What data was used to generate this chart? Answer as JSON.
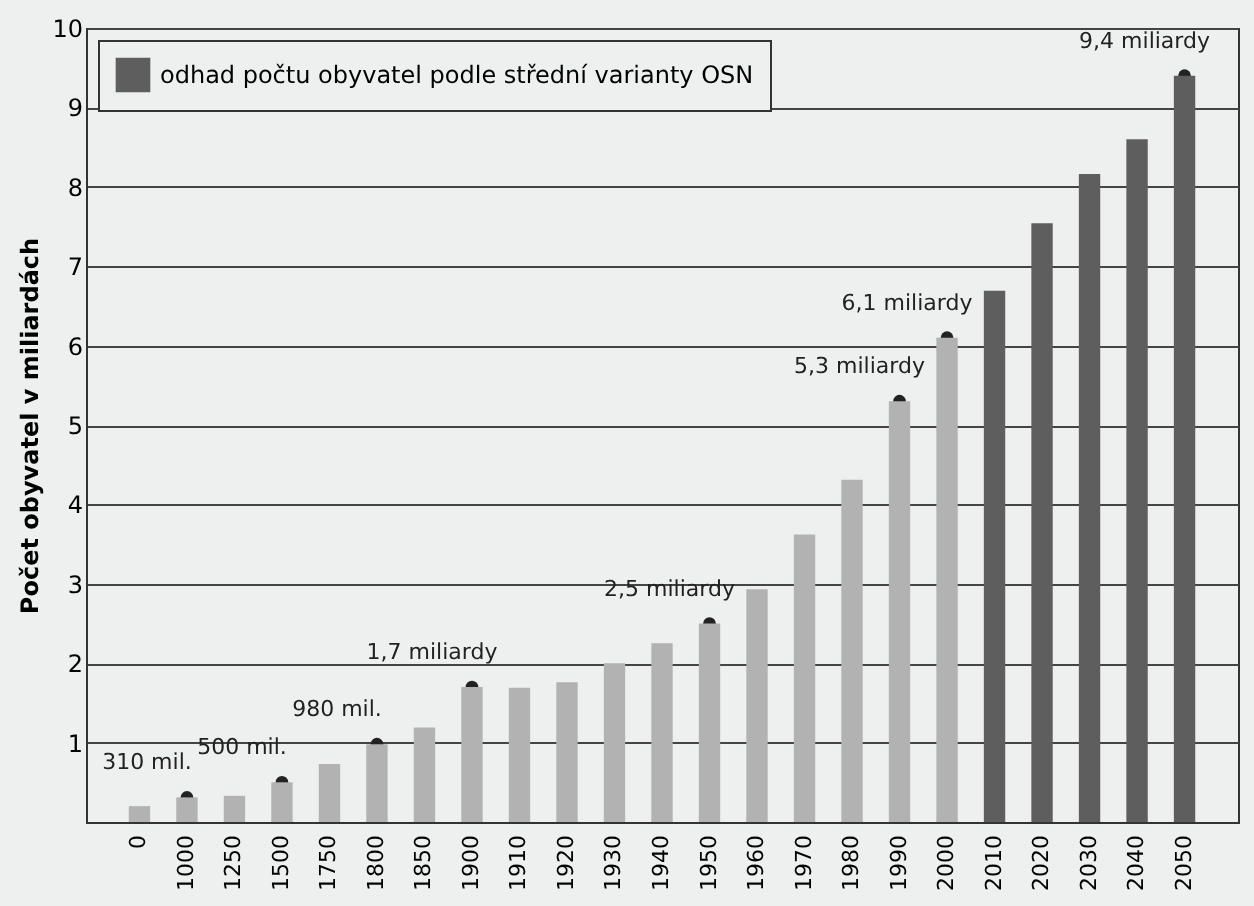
{
  "chart_data": {
    "type": "bar",
    "ylabel": "Počet obyvatel v miliardách",
    "categories": [
      "0",
      "1000",
      "1250",
      "1500",
      "1750",
      "1800",
      "1850",
      "1900",
      "1910",
      "1920",
      "1930",
      "1940",
      "1950",
      "1960",
      "1970",
      "1980",
      "1990",
      "2000",
      "2010",
      "2020",
      "2030",
      "2040",
      "2050"
    ],
    "series": [
      {
        "color": "#b2b2b2",
        "values": [
          0.2,
          0.31,
          0.33,
          0.5,
          0.73,
          0.98,
          1.19,
          1.7,
          1.69,
          1.76,
          2.0,
          2.25,
          2.5,
          2.93,
          3.62,
          4.31,
          5.3,
          6.1,
          null,
          null,
          null,
          null,
          null
        ]
      },
      {
        "name": "odhad počtu obyvatel podle střední varianty OSN",
        "color": "#5e5e5e",
        "values": [
          null,
          null,
          null,
          null,
          null,
          null,
          null,
          null,
          null,
          null,
          null,
          null,
          null,
          null,
          null,
          null,
          null,
          null,
          6.69,
          7.54,
          8.16,
          8.6,
          9.4
        ]
      }
    ],
    "ylim": [
      0,
      10
    ],
    "yticks": [
      {
        "value": 0,
        "label": null
      },
      1,
      2,
      3,
      4,
      5,
      6,
      7,
      8,
      9,
      10
    ],
    "annotations": [
      {
        "text": "310 mil.",
        "x": "1000",
        "y": 0.31
      },
      {
        "text": "500 mil.",
        "x": "1500",
        "y": 0.5
      },
      {
        "text": "980 mil.",
        "x": "1800",
        "y": 0.98
      },
      {
        "text": "1,7 miliardy",
        "x": "1900",
        "y": 1.7
      },
      {
        "text": "2,5 miliardy",
        "x": "1950",
        "y": 2.5
      },
      {
        "text": "5,3 miliardy",
        "x": "1990",
        "y": 5.3
      },
      {
        "text": "6,1 miliardy",
        "x": "2000",
        "y": 6.1
      },
      {
        "text": "9,4 miliardy",
        "x": "2050",
        "y": 9.4
      }
    ],
    "grid": "y",
    "legend": "top left"
  }
}
